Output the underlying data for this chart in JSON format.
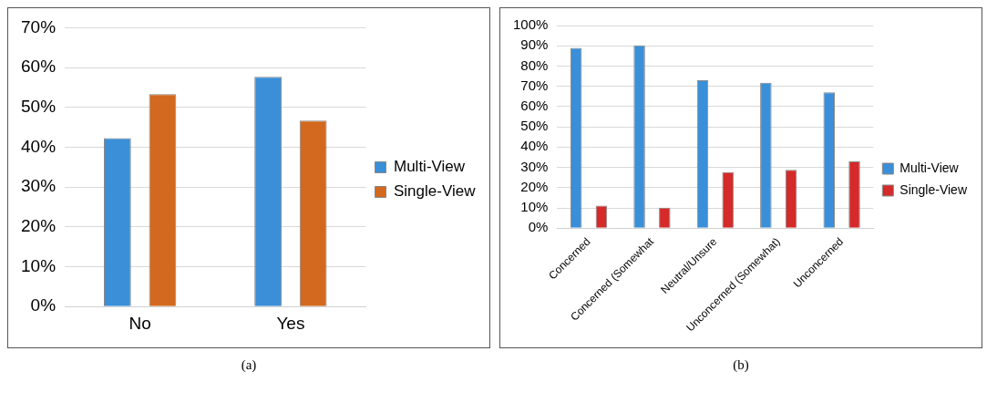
{
  "chart_data": [
    {
      "type": "bar",
      "categories": [
        "No",
        "Yes"
      ],
      "series": [
        {
          "name": "Multi-View",
          "color": "#3a8fd8",
          "values": [
            42.3,
            57.7
          ]
        },
        {
          "name": "Single-View",
          "color": "#d2691e",
          "values": [
            53.3,
            46.7
          ]
        }
      ],
      "ylim": [
        0,
        70
      ],
      "yticks": [
        {
          "value": 0,
          "label": "0%"
        },
        {
          "value": 10,
          "label": "10%"
        },
        {
          "value": 20,
          "label": "20%"
        },
        {
          "value": 30,
          "label": "30%"
        },
        {
          "value": 40,
          "label": "40%"
        },
        {
          "value": 50,
          "label": "50%"
        },
        {
          "value": 60,
          "label": "60%"
        },
        {
          "value": 70,
          "label": "70%"
        }
      ],
      "grid": "y",
      "legend": "right",
      "annotations": [
        "(a)"
      ]
    },
    {
      "type": "bar",
      "categories": [
        "Concerned",
        "Concerned (Somewhat",
        "Neutral/Unsure",
        "Unconcerned (Somewhat)",
        "Unconcerned"
      ],
      "series": [
        {
          "name": "Multi-View",
          "color": "#3a8fd8",
          "values": [
            89.0,
            90.2,
            73.0,
            71.8,
            67.0
          ]
        },
        {
          "name": "Single-View",
          "color": "#d42a2a",
          "values": [
            11.1,
            10.1,
            27.7,
            28.8,
            33.0
          ]
        }
      ],
      "ylim": [
        0,
        100
      ],
      "yticks": [
        {
          "value": 0,
          "label": "0%"
        },
        {
          "value": 10,
          "label": "10%"
        },
        {
          "value": 20,
          "label": "20%"
        },
        {
          "value": 30,
          "label": "30%"
        },
        {
          "value": 40,
          "label": "40%"
        },
        {
          "value": 50,
          "label": "50%"
        },
        {
          "value": 60,
          "label": "60%"
        },
        {
          "value": 70,
          "label": "70%"
        },
        {
          "value": 80,
          "label": "80%"
        },
        {
          "value": 90,
          "label": "90%"
        },
        {
          "value": 100,
          "label": "100%"
        }
      ],
      "grid": "y",
      "legend": "right",
      "annotations": [
        "(b)"
      ]
    }
  ]
}
